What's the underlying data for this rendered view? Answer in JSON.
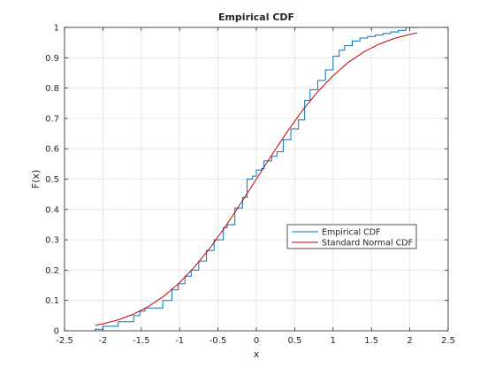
{
  "chart_data": {
    "type": "line",
    "title": "Empirical CDF",
    "xlabel": "x",
    "ylabel": "F(x)",
    "xlim": [
      -2.5,
      2.5
    ],
    "ylim": [
      0,
      1
    ],
    "xticks": [
      -2.5,
      -2,
      -1.5,
      -1,
      -0.5,
      0,
      0.5,
      1,
      1.5,
      2,
      2.5
    ],
    "xtick_labels": [
      "-2.5",
      "-2",
      "-1.5",
      "-1",
      "-0.5",
      "0",
      "0.5",
      "1",
      "1.5",
      "2",
      "2.5"
    ],
    "yticks": [
      0,
      0.1,
      0.2,
      0.3,
      0.4,
      0.5,
      0.6,
      0.7,
      0.8,
      0.9,
      1
    ],
    "ytick_labels": [
      "0",
      "0.1",
      "0.2",
      "0.3",
      "0.4",
      "0.5",
      "0.6",
      "0.7",
      "0.8",
      "0.9",
      "1"
    ],
    "grid": true,
    "legend_position": "center-right",
    "series": [
      {
        "name": "Empirical CDF",
        "style": "step",
        "color": "#0072bd",
        "x": [
          -2.1,
          -2.0,
          -1.8,
          -1.6,
          -1.52,
          -1.45,
          -1.22,
          -1.1,
          -1.02,
          -0.93,
          -0.85,
          -0.75,
          -0.65,
          -0.55,
          -0.43,
          -0.38,
          -0.28,
          -0.18,
          -0.12,
          -0.05,
          0.0,
          0.07,
          0.1,
          0.2,
          0.27,
          0.35,
          0.45,
          0.55,
          0.63,
          0.7,
          0.8,
          0.9,
          1.0,
          1.08,
          1.15,
          1.25,
          1.35,
          1.45,
          1.55,
          1.65,
          1.75,
          1.85,
          1.95,
          2.1
        ],
        "y": [
          0.005,
          0.015,
          0.03,
          0.05,
          0.065,
          0.075,
          0.1,
          0.135,
          0.155,
          0.18,
          0.2,
          0.23,
          0.265,
          0.3,
          0.34,
          0.35,
          0.405,
          0.44,
          0.5,
          0.51,
          0.53,
          0.535,
          0.56,
          0.575,
          0.59,
          0.63,
          0.665,
          0.695,
          0.76,
          0.795,
          0.825,
          0.86,
          0.905,
          0.925,
          0.94,
          0.955,
          0.965,
          0.97,
          0.975,
          0.98,
          0.985,
          0.99,
          1.0,
          1.0
        ]
      },
      {
        "name": "Standard Normal CDF",
        "style": "smooth",
        "color": "#cc0000",
        "x": [
          -2.1,
          -2.0,
          -1.8,
          -1.6,
          -1.4,
          -1.2,
          -1.0,
          -0.8,
          -0.6,
          -0.4,
          -0.2,
          0.0,
          0.2,
          0.4,
          0.6,
          0.8,
          1.0,
          1.2,
          1.4,
          1.6,
          1.8,
          2.0,
          2.1
        ],
        "y": [
          0.018,
          0.023,
          0.036,
          0.055,
          0.081,
          0.115,
          0.159,
          0.212,
          0.274,
          0.345,
          0.421,
          0.5,
          0.579,
          0.655,
          0.726,
          0.788,
          0.841,
          0.885,
          0.919,
          0.945,
          0.964,
          0.977,
          0.982
        ]
      }
    ]
  }
}
